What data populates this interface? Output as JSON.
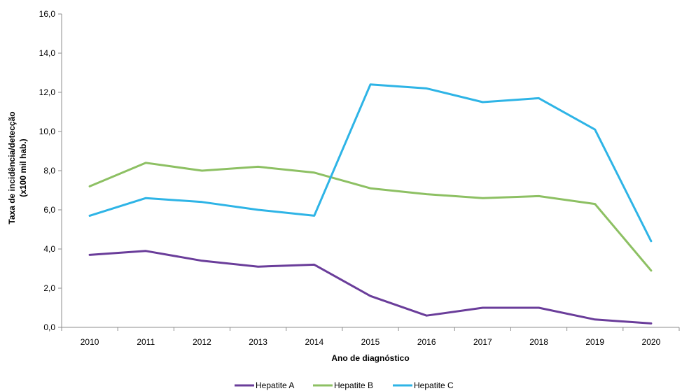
{
  "chart_data": {
    "type": "line",
    "x": [
      "2010",
      "2011",
      "2012",
      "2013",
      "2014",
      "2015",
      "2016",
      "2017",
      "2018",
      "2019",
      "2020"
    ],
    "series": [
      {
        "name": "Hepatite A",
        "color": "#6a3d9a",
        "values": [
          3.7,
          3.9,
          3.4,
          3.1,
          3.2,
          1.6,
          0.6,
          1.0,
          1.0,
          0.4,
          0.2
        ]
      },
      {
        "name": "Hepatite B",
        "color": "#8dc063",
        "values": [
          7.2,
          8.4,
          8.0,
          8.2,
          7.9,
          7.1,
          6.8,
          6.6,
          6.7,
          6.3,
          2.9
        ]
      },
      {
        "name": "Hepatite C",
        "color": "#2eb4e6",
        "values": [
          5.7,
          6.6,
          6.4,
          6.0,
          5.7,
          12.4,
          12.2,
          11.5,
          11.7,
          10.1,
          4.4
        ]
      }
    ],
    "ylabel_line1": "Taxa de incidência/detecção",
    "ylabel_line2": "(x100 mil hab.)",
    "xlabel": "Ano de diagnóstico",
    "ylim": [
      0,
      16
    ],
    "yticks": [
      0,
      2,
      4,
      6,
      8,
      10,
      12,
      14,
      16
    ],
    "ytick_labels": [
      "0,0",
      "2,0",
      "4,0",
      "6,0",
      "8,0",
      "10,0",
      "12,0",
      "14,0",
      "16,0"
    ],
    "grid": false,
    "legend_position": "bottom"
  }
}
